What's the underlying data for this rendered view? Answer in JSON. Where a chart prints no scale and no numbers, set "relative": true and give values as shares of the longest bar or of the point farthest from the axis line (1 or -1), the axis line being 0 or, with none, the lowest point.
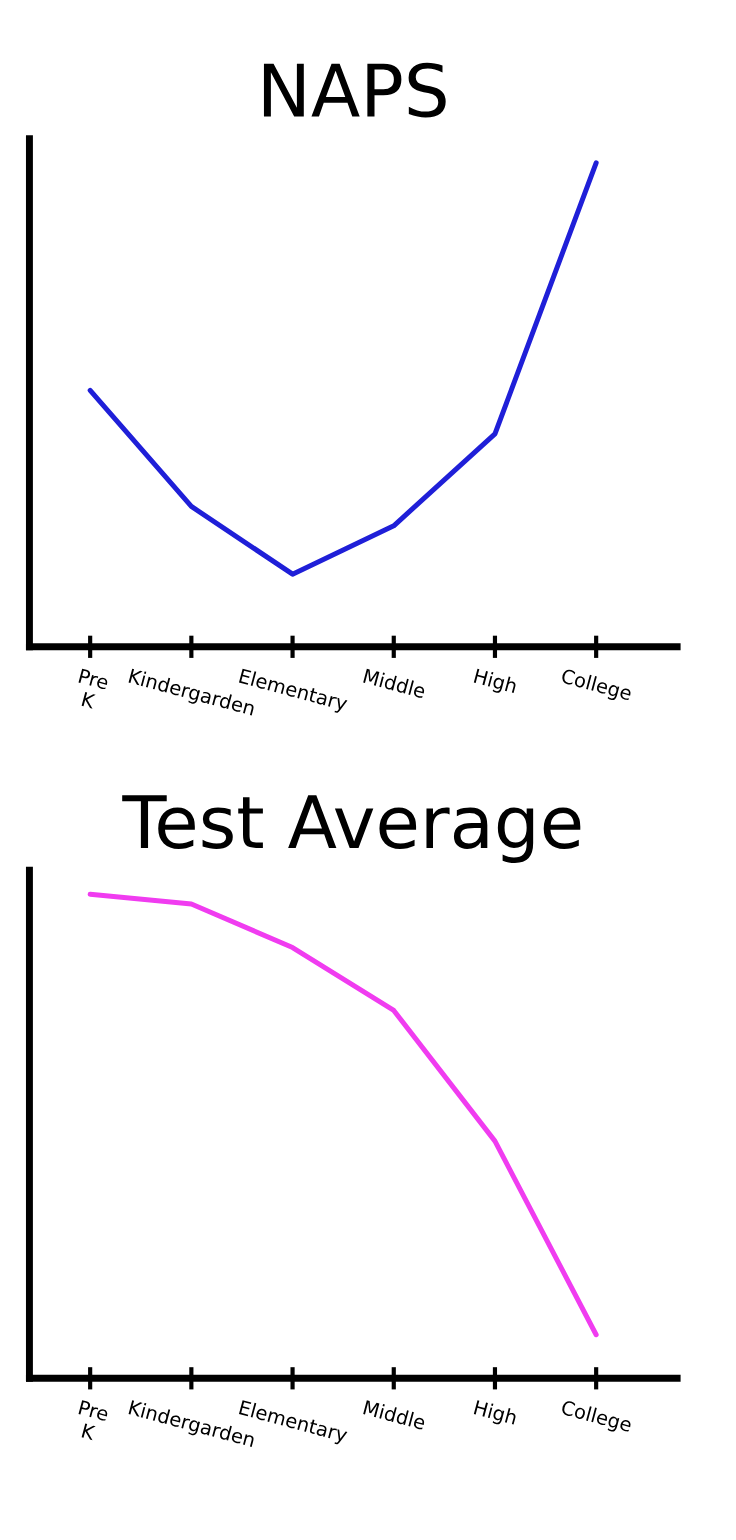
{
  "chart_data": [
    {
      "type": "line",
      "title": "NAPS",
      "categories": [
        "Pre\nK",
        "Kindergarden",
        "Elementary",
        "Middle",
        "High",
        "College"
      ],
      "relative": true,
      "series": [
        {
          "color": "#1f1fd8",
          "values": [
            0.53,
            0.29,
            0.15,
            0.25,
            0.44,
            1.0
          ]
        }
      ]
    },
    {
      "type": "line",
      "title": "Test Average",
      "categories": [
        "Pre\nK",
        "Kindergarden",
        "Elementary",
        "Middle",
        "High",
        "College"
      ],
      "relative": true,
      "series": [
        {
          "color": "#f03cf0",
          "values": [
            1.0,
            0.98,
            0.89,
            0.76,
            0.49,
            0.09
          ]
        }
      ]
    }
  ]
}
